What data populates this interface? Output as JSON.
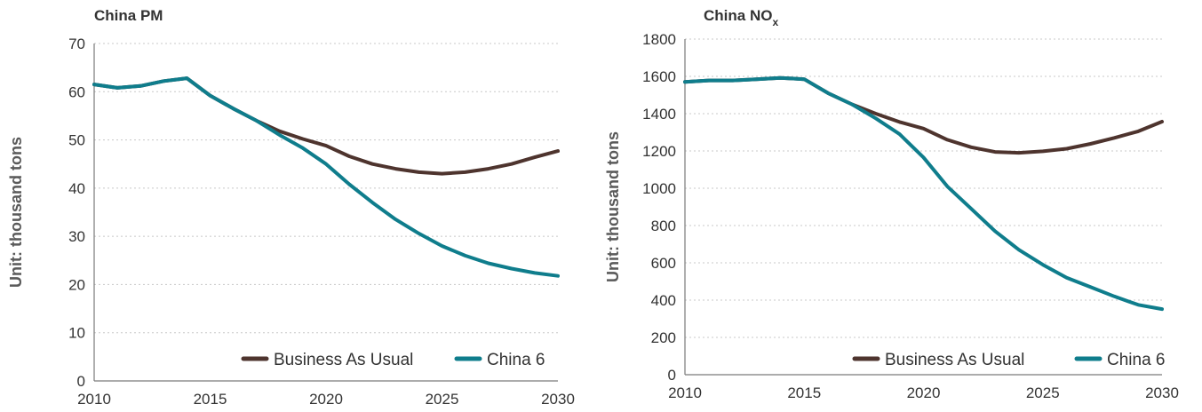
{
  "chart_data": [
    {
      "type": "line",
      "title": "China PM",
      "title_sub": "",
      "ylabel": "Unit: thousand tons",
      "xlabel": "",
      "xlim": [
        2010,
        2030
      ],
      "ylim": [
        0,
        70
      ],
      "xticks": [
        2010,
        2015,
        2020,
        2025,
        2030
      ],
      "yticks": [
        0,
        10,
        20,
        30,
        40,
        50,
        60,
        70
      ],
      "grid": true,
      "legend_position": "bottom-right",
      "x": [
        2010,
        2011,
        2012,
        2013,
        2014,
        2015,
        2016,
        2017,
        2018,
        2019,
        2020,
        2021,
        2022,
        2023,
        2024,
        2025,
        2026,
        2027,
        2028,
        2029,
        2030
      ],
      "series": [
        {
          "name": "Business As Usual",
          "color": "#4e342e",
          "values": [
            61.5,
            60.8,
            61.2,
            62.2,
            62.8,
            59.2,
            56.5,
            54.0,
            51.8,
            50.2,
            48.8,
            46.6,
            45.0,
            44.0,
            43.3,
            43.0,
            43.3,
            44.0,
            45.0,
            46.4,
            47.7
          ]
        },
        {
          "name": "China 6",
          "color": "#0f7d8c",
          "values": [
            61.5,
            60.8,
            61.2,
            62.2,
            62.8,
            59.2,
            56.5,
            54.0,
            51.0,
            48.3,
            45.0,
            40.8,
            37.0,
            33.5,
            30.6,
            28.0,
            26.0,
            24.4,
            23.3,
            22.4,
            21.8
          ]
        }
      ]
    },
    {
      "type": "line",
      "title": "China NO",
      "title_sub": "x",
      "ylabel": "Unit: thousand tons",
      "xlabel": "",
      "xlim": [
        2010,
        2030
      ],
      "ylim": [
        0,
        1800
      ],
      "xticks": [
        2010,
        2015,
        2020,
        2025,
        2030
      ],
      "yticks": [
        0,
        200,
        400,
        600,
        800,
        1000,
        1200,
        1400,
        1600,
        1800
      ],
      "grid": true,
      "legend_position": "bottom-right",
      "x": [
        2010,
        2011,
        2012,
        2013,
        2014,
        2015,
        2016,
        2017,
        2018,
        2019,
        2020,
        2021,
        2022,
        2023,
        2024,
        2025,
        2026,
        2027,
        2028,
        2029,
        2030
      ],
      "series": [
        {
          "name": "Business As Usual",
          "color": "#4e342e",
          "values": [
            1570,
            1578,
            1578,
            1585,
            1592,
            1585,
            1510,
            1450,
            1400,
            1355,
            1320,
            1260,
            1220,
            1195,
            1190,
            1198,
            1212,
            1238,
            1270,
            1305,
            1357
          ]
        },
        {
          "name": "China 6",
          "color": "#0f7d8c",
          "values": [
            1570,
            1578,
            1578,
            1585,
            1592,
            1585,
            1510,
            1450,
            1375,
            1290,
            1165,
            1010,
            890,
            770,
            670,
            590,
            520,
            470,
            420,
            375,
            352
          ]
        }
      ]
    }
  ]
}
